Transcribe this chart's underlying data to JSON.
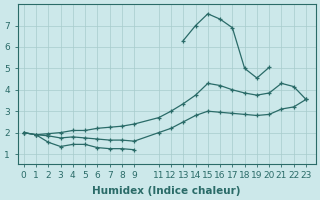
{
  "background_color": "#cce8ea",
  "grid_color": "#a8cccc",
  "line_color": "#2a6b68",
  "xlabel": "Humidex (Indice chaleur)",
  "tick_fontsize": 6.5,
  "xlabel_fontsize": 7.5,
  "xlim": [
    -0.5,
    23.8
  ],
  "ylim": [
    0.55,
    8.0
  ],
  "xtick_pos": [
    0,
    1,
    2,
    3,
    4,
    5,
    6,
    7,
    8,
    9,
    11,
    12,
    13,
    14,
    15,
    16,
    17,
    18,
    19,
    20,
    21,
    22,
    23
  ],
  "xtick_labels": [
    "0",
    "1",
    "2",
    "3",
    "4",
    "5",
    "6",
    "7",
    "8",
    "9",
    "11",
    "12",
    "13",
    "14",
    "15",
    "16",
    "17",
    "18",
    "19",
    "20",
    "21",
    "22",
    "23"
  ],
  "ytick_pos": [
    1,
    2,
    3,
    4,
    5,
    6,
    7
  ],
  "ytick_labels": [
    "1",
    "2",
    "3",
    "4",
    "5",
    "6",
    "7"
  ],
  "curve1_x": [
    0,
    1,
    2,
    3,
    4,
    5,
    6,
    7,
    8,
    9
  ],
  "curve1_y": [
    2.0,
    1.9,
    1.55,
    1.35,
    1.45,
    1.45,
    1.3,
    1.25,
    1.25,
    1.2
  ],
  "curve2_x": [
    0,
    1,
    2,
    3,
    4,
    5,
    6,
    7,
    8,
    9,
    11,
    12,
    13,
    14,
    15,
    16,
    17,
    18,
    19,
    20,
    21,
    22,
    23
  ],
  "curve2_y": [
    2.0,
    1.9,
    1.85,
    1.75,
    1.8,
    1.75,
    1.7,
    1.65,
    1.65,
    1.6,
    2.0,
    2.2,
    2.5,
    2.8,
    3.0,
    2.95,
    2.9,
    2.85,
    2.8,
    2.85,
    3.1,
    3.2,
    3.55
  ],
  "curve3_x": [
    0,
    1,
    2,
    3,
    4,
    5,
    6,
    7,
    8,
    9,
    11,
    12,
    13,
    14,
    15,
    16,
    17,
    18,
    19,
    20,
    21,
    22,
    23
  ],
  "curve3_y": [
    2.0,
    1.9,
    1.95,
    2.0,
    2.1,
    2.1,
    2.2,
    2.25,
    2.3,
    2.4,
    2.7,
    3.0,
    3.35,
    3.75,
    4.3,
    4.2,
    4.0,
    3.85,
    3.75,
    3.85,
    4.3,
    4.15,
    3.55
  ],
  "curve4_x": [
    13,
    14,
    15,
    16,
    17,
    18,
    19,
    20
  ],
  "curve4_y": [
    6.3,
    7.0,
    7.55,
    7.3,
    6.9,
    5.0,
    4.55,
    5.05
  ]
}
